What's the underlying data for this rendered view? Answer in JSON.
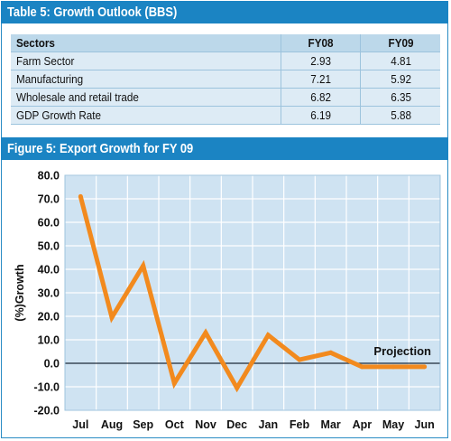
{
  "table": {
    "title": "Table 5: Growth Outlook (BBS)",
    "headers": [
      "Sectors",
      "FY08",
      "FY09"
    ],
    "rows": [
      [
        "Farm Sector",
        "2.93",
        "4.81"
      ],
      [
        "Manufacturing",
        "7.21",
        "5.92"
      ],
      [
        "Wholesale and retail trade",
        "6.82",
        "6.35"
      ],
      [
        "GDP Growth Rate",
        "6.19",
        "5.88"
      ]
    ]
  },
  "figure_title": "Figure 5: Export Growth for FY 09",
  "chart_data": {
    "type": "line",
    "title": "Figure 5: Export Growth for FY 09",
    "xlabel": "",
    "ylabel": "(%)Growth",
    "categories": [
      "Jul",
      "Aug",
      "Sep",
      "Oct",
      "Nov",
      "Dec",
      "Jan",
      "Feb",
      "Mar",
      "Apr",
      "May",
      "Jun"
    ],
    "series": [
      {
        "values": [
          71.0,
          19.5,
          41.5,
          -8.5,
          13.0,
          -10.5,
          12.0,
          1.5,
          4.5,
          -1.5,
          -1.5,
          -1.5
        ]
      }
    ],
    "yticks": [
      "80.0",
      "70.0",
      "60.0",
      "50.0",
      "40.0",
      "30.0",
      "20.0",
      "10.0",
      "0.0",
      "-10.0",
      "-20.0"
    ],
    "ylim": [
      -20,
      80
    ],
    "annotation": "Projection",
    "grid": true,
    "colors": {
      "line": "#f28a1e",
      "plot_bg": "#cfe3f2",
      "grid": "#ffffff",
      "zero_line": "#1c2a38"
    }
  }
}
